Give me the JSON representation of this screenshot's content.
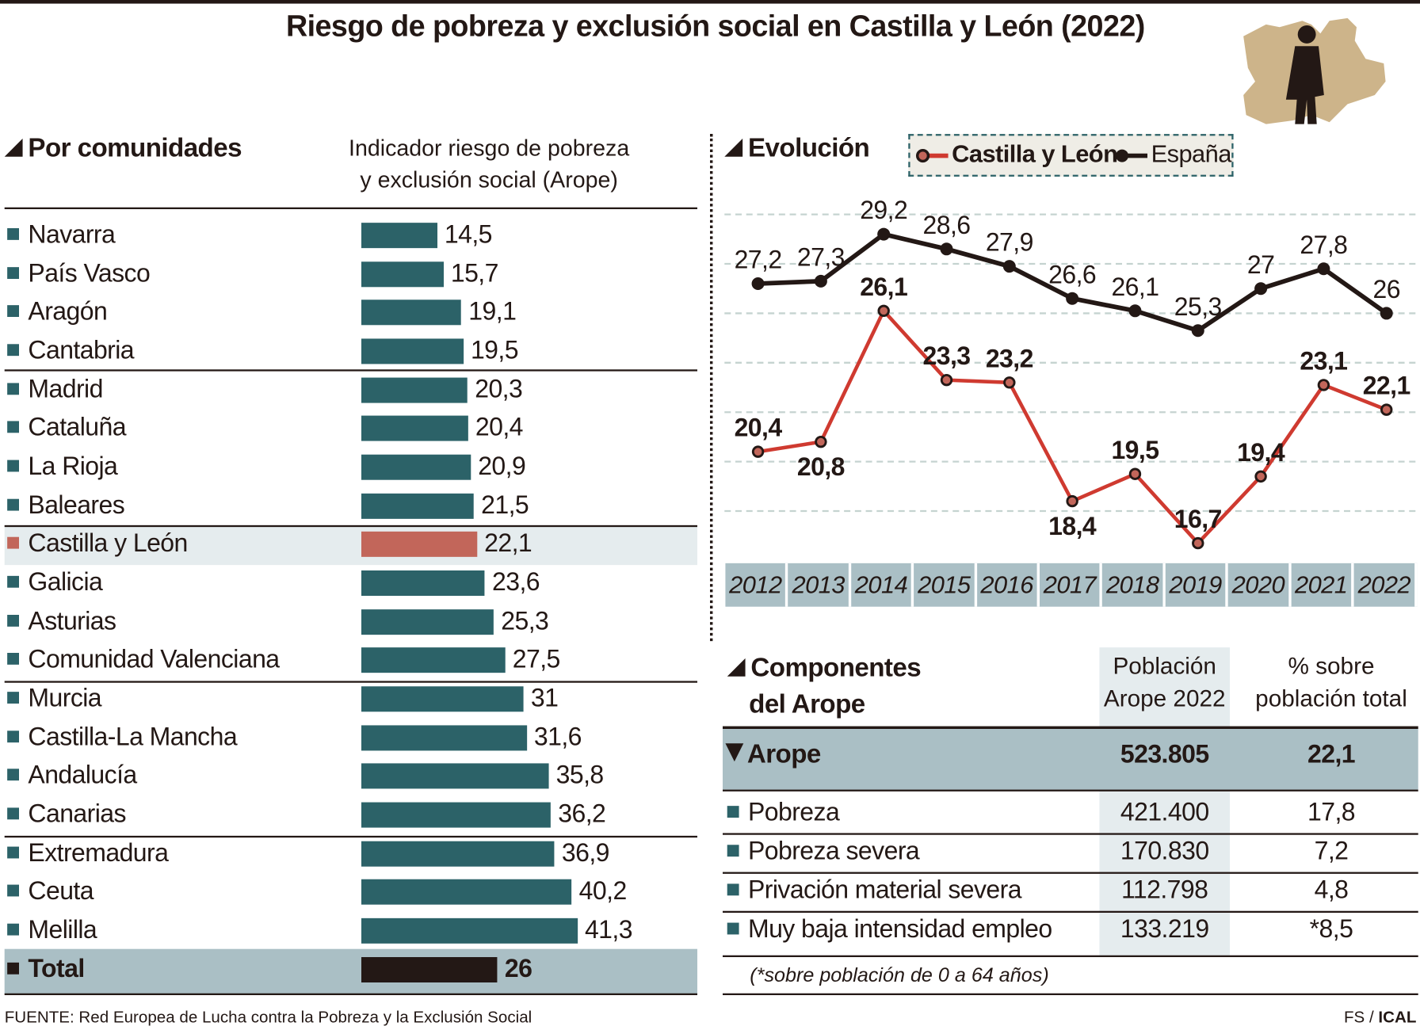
{
  "title": "Riesgo de pobreza y exclusión social en Castilla y León (2022)",
  "left": {
    "section_title": "Por comunidades",
    "header_line1": "Indicador riesgo de pobreza",
    "header_line2": "y exclusión social (Arope)",
    "rows": [
      {
        "label": "Navarra",
        "value": "14,5"
      },
      {
        "label": "País Vasco",
        "value": "15,7"
      },
      {
        "label": "Aragón",
        "value": "19,1"
      },
      {
        "label": "Cantabria",
        "value": "19,5"
      },
      {
        "label": "Madrid",
        "value": "20,3"
      },
      {
        "label": "Cataluña",
        "value": "20,4"
      },
      {
        "label": "La Rioja",
        "value": "20,9"
      },
      {
        "label": "Baleares",
        "value": "21,5"
      },
      {
        "label": "Castilla y León",
        "value": "22,1",
        "highlight": true
      },
      {
        "label": "Galicia",
        "value": "23,6"
      },
      {
        "label": "Asturias",
        "value": "25,3"
      },
      {
        "label": "Comunidad Valenciana",
        "value": "27,5"
      },
      {
        "label": "Murcia",
        "value": "31"
      },
      {
        "label": "Castilla-La Mancha",
        "value": "31,6"
      },
      {
        "label": "Andalucía",
        "value": "35,8"
      },
      {
        "label": "Canarias",
        "value": "36,2"
      },
      {
        "label": "Extremadura",
        "value": "36,9"
      },
      {
        "label": "Ceuta",
        "value": "40,2"
      },
      {
        "label": "Melilla",
        "value": "41,3"
      },
      {
        "label": "Total",
        "value": "26",
        "total": true
      }
    ]
  },
  "evolution": {
    "section_title": "Evolución",
    "legend": {
      "cyl": "Castilla y León",
      "spain": "España"
    }
  },
  "chart_data": [
    {
      "type": "bar",
      "orientation": "horizontal",
      "categories": [
        "Navarra",
        "País Vasco",
        "Aragón",
        "Cantabria",
        "Madrid",
        "Cataluña",
        "La Rioja",
        "Baleares",
        "Castilla y León",
        "Galicia",
        "Asturias",
        "Comunidad Valenciana",
        "Murcia",
        "Castilla-La Mancha",
        "Andalucía",
        "Canarias",
        "Extremadura",
        "Ceuta",
        "Melilla",
        "Total"
      ],
      "values": [
        14.5,
        15.7,
        19.1,
        19.5,
        20.3,
        20.4,
        20.9,
        21.5,
        22.1,
        23.6,
        25.3,
        27.5,
        31,
        31.6,
        35.8,
        36.2,
        36.9,
        40.2,
        41.3,
        26
      ],
      "title": "Indicador riesgo de pobreza y exclusión social (Arope)"
    },
    {
      "type": "line",
      "x": [
        "2012",
        "2013",
        "2014",
        "2015",
        "2016",
        "2017",
        "2018",
        "2019",
        "2020",
        "2021",
        "2022"
      ],
      "series": [
        {
          "name": "Castilla y León",
          "values": [
            20.4,
            20.8,
            26.1,
            23.3,
            23.2,
            18.4,
            19.5,
            16.7,
            19.4,
            23.1,
            22.1
          ],
          "labels": [
            "20,4",
            "20,8",
            "26,1",
            "23,3",
            "23,2",
            "18,4",
            "19,5",
            "16,7",
            "19,4",
            "23,1",
            "22,1"
          ],
          "color": "#cf3a30"
        },
        {
          "name": "España",
          "values": [
            27.2,
            27.3,
            29.2,
            28.6,
            27.9,
            26.6,
            26.1,
            25.3,
            27,
            27.8,
            26
          ],
          "labels": [
            "27,2",
            "27,3",
            "29,2",
            "28,6",
            "27,9",
            "26,6",
            "26,1",
            "25,3",
            "27",
            "27,8",
            "26"
          ],
          "color": "#231815"
        }
      ],
      "ylim": [
        16,
        30
      ],
      "grid": true,
      "legend": "top"
    }
  ],
  "components": {
    "title_line1": "Componentes",
    "title_line2": "del Arope",
    "col1_line1": "Población",
    "col1_line2": "Arope 2022",
    "col2_line1": "% sobre",
    "col2_line2": "población total",
    "main": {
      "label": "Arope",
      "pop": "523.805",
      "pct": "22,1"
    },
    "rows": [
      {
        "label": "Pobreza",
        "pop": "421.400",
        "pct": "17,8"
      },
      {
        "label": "Pobreza severa",
        "pop": "170.830",
        "pct": "7,2"
      },
      {
        "label": "Privación material severa",
        "pop": "112.798",
        "pct": "4,8"
      },
      {
        "label": "Muy baja intensidad empleo",
        "pop": "133.219",
        "pct": "*8,5"
      }
    ],
    "footnote": "(*sobre población de 0 a 64 años)"
  },
  "footer": {
    "source": "FUENTE: Red Europea de Lucha contra la Pobreza y la Exclusión Social",
    "credit_prefix": "FS / ",
    "credit_brand": "ICAL"
  },
  "colors": {
    "teal": "#2c6268",
    "cyl_bar": "#c2665a",
    "cyl_line": "#cf3a30",
    "total_bar": "#231815",
    "band": "#aabfc5",
    "map": "#cdb48a"
  }
}
